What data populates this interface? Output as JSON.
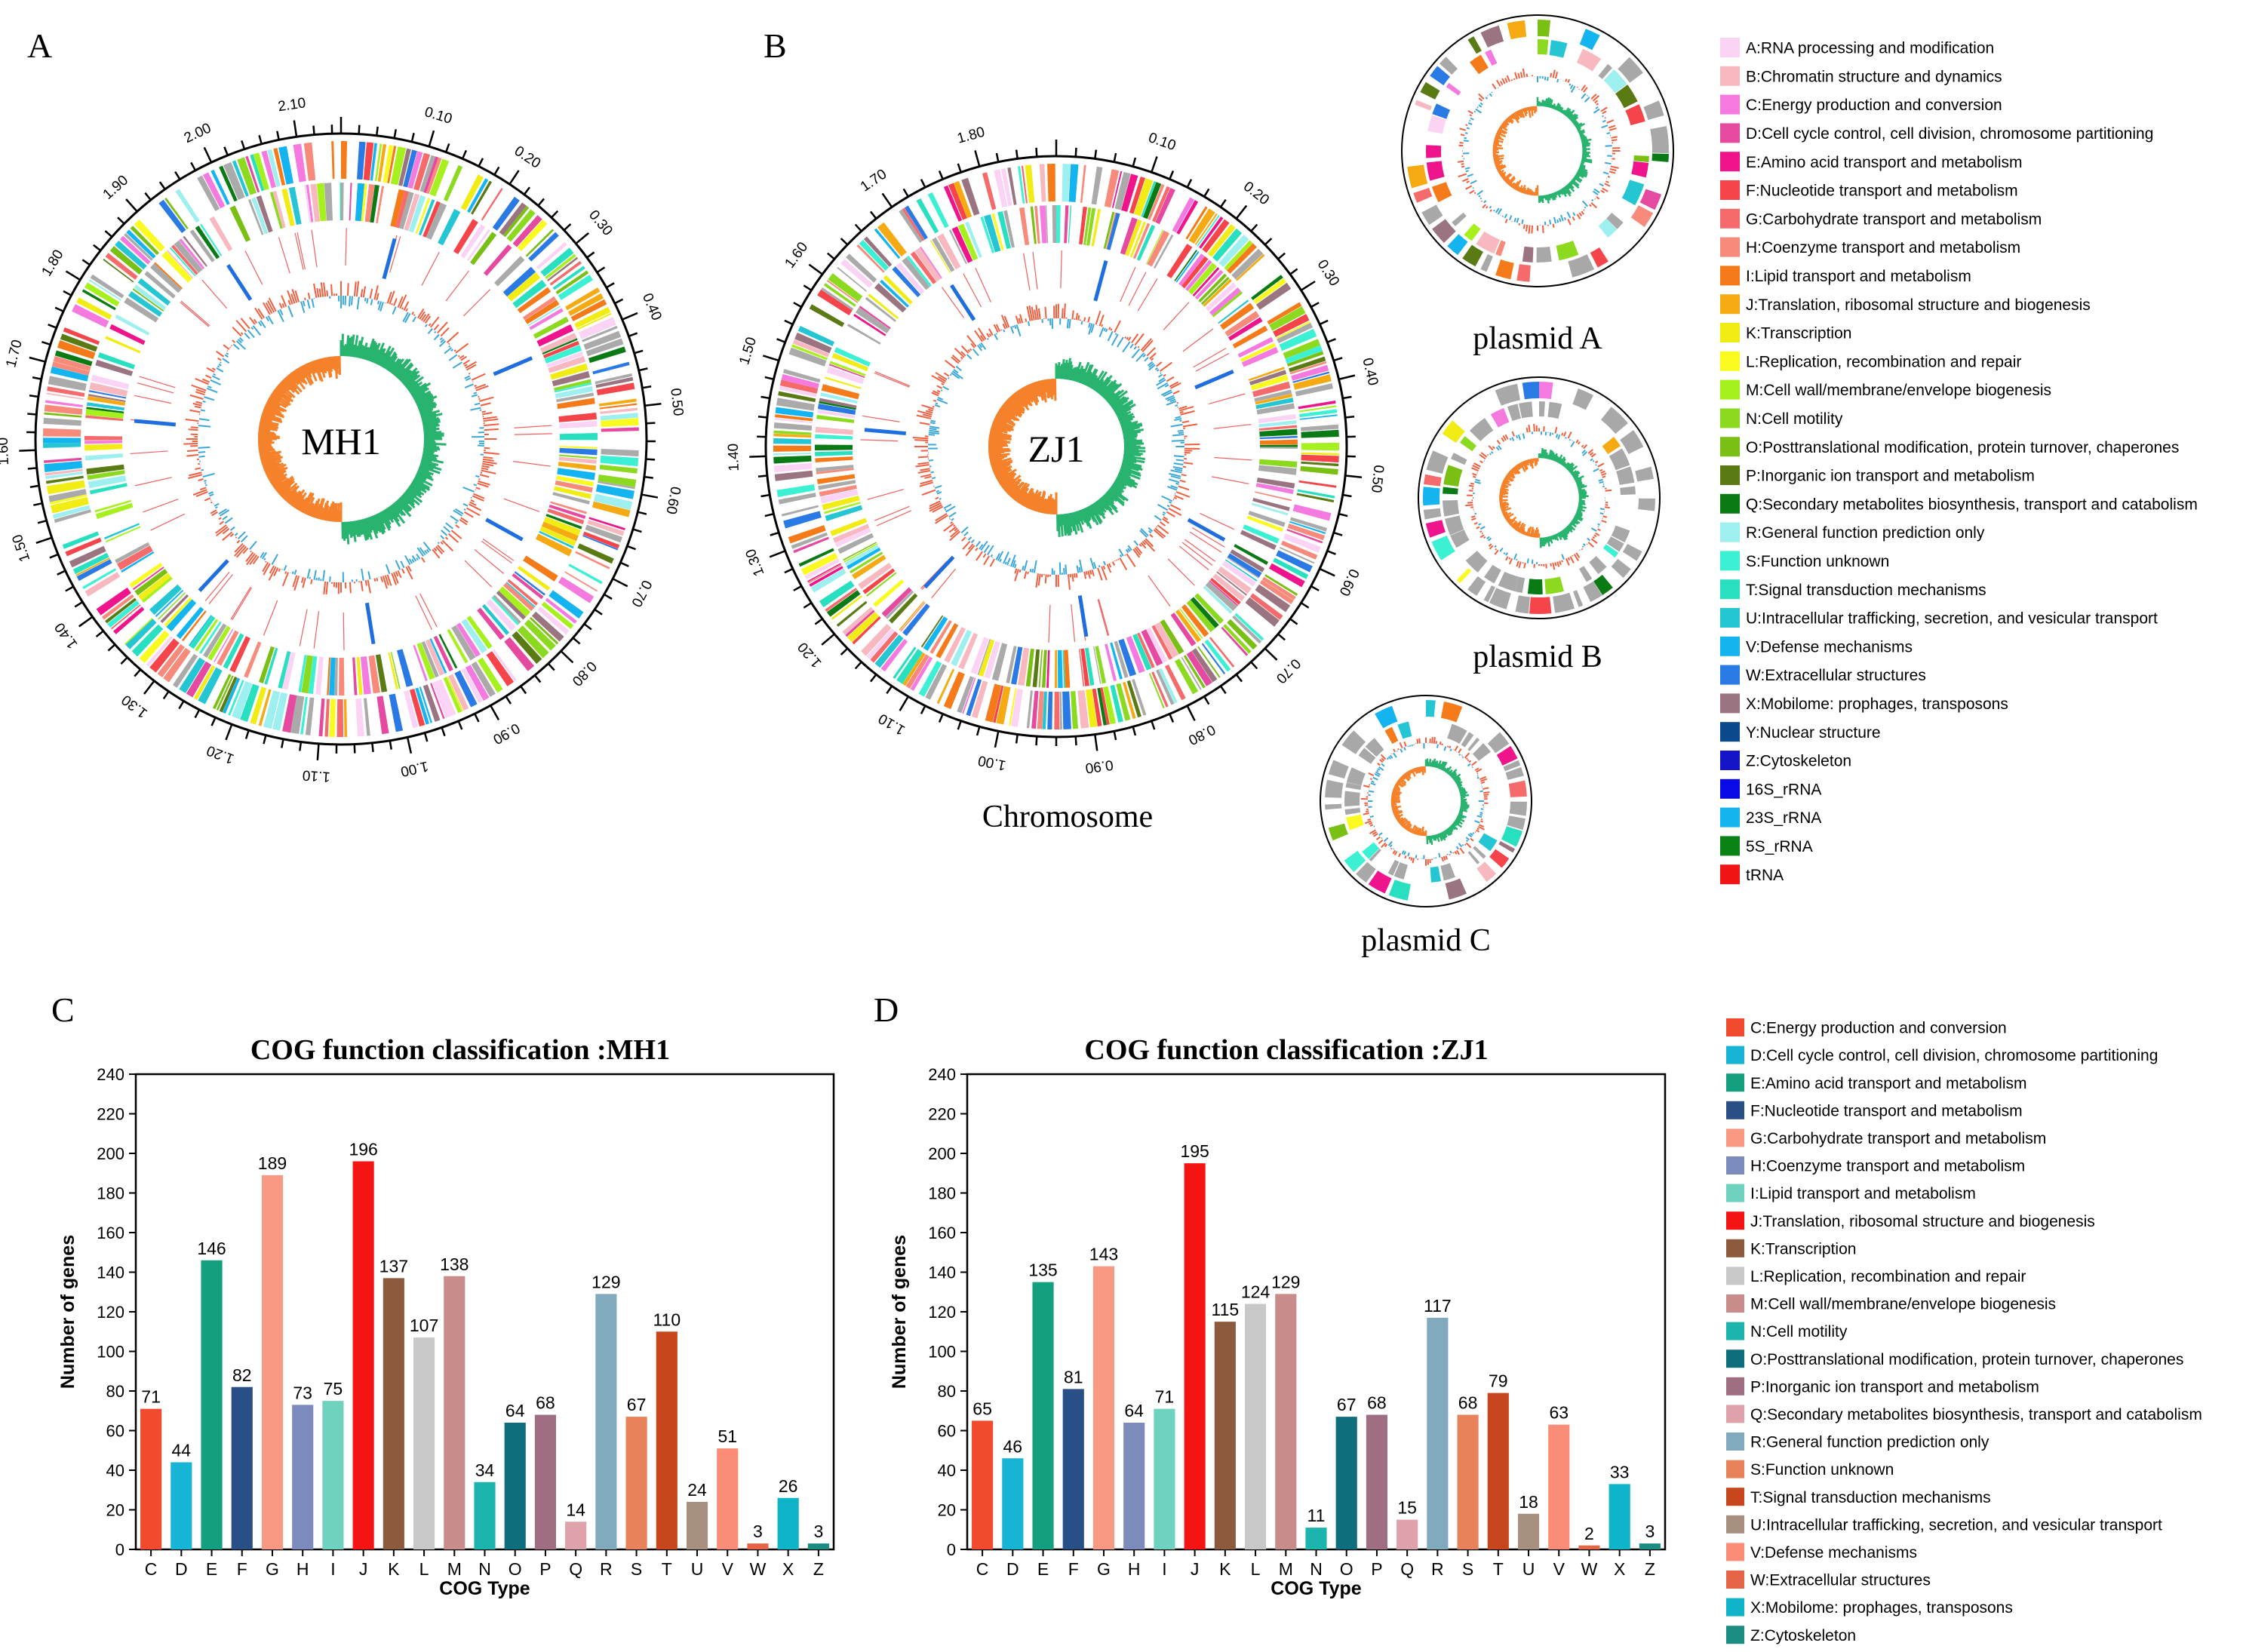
{
  "panel_labels": {
    "A": "A",
    "B": "B",
    "C": "C",
    "D": "D"
  },
  "genome_maps": {
    "mh1": {
      "center_label": "MH1",
      "ticks": [
        "0.10",
        "0.20",
        "0.30",
        "0.40",
        "0.50",
        "0.60",
        "0.70",
        "0.80",
        "0.90",
        "1.00",
        "1.10",
        "1.20",
        "1.30",
        "1.40",
        "1.50",
        "1.60",
        "1.70",
        "1.80",
        "1.90",
        "2.00",
        "2.10"
      ]
    },
    "zj1": {
      "center_label": "ZJ1",
      "caption": "Chromosome",
      "ticks": [
        "0.10",
        "0.20",
        "0.30",
        "0.40",
        "0.50",
        "0.60",
        "0.70",
        "0.80",
        "0.90",
        "1.00",
        "1.10",
        "1.20",
        "1.30",
        "1.40",
        "1.50",
        "1.60",
        "1.70",
        "1.80"
      ]
    },
    "plasmid_a": {
      "caption": "plasmid A"
    },
    "plasmid_b": {
      "caption": "plasmid B"
    },
    "plasmid_c": {
      "caption": "plasmid C"
    }
  },
  "circle_legend": [
    {
      "label": "A:RNA processing and modification",
      "color": "#fbd3f5"
    },
    {
      "label": "B:Chromatin structure and dynamics",
      "color": "#f8b8c0"
    },
    {
      "label": "C:Energy production and conversion",
      "color": "#f57ae0"
    },
    {
      "label": "D:Cell cycle control, cell division, chromosome partitioning",
      "color": "#e54aa0"
    },
    {
      "label": "E:Amino acid transport and metabolism",
      "color": "#f0148c"
    },
    {
      "label": "F:Nucleotide transport and metabolism",
      "color": "#f5444a"
    },
    {
      "label": "G:Carbohydrate transport and metabolism",
      "color": "#f56a6a"
    },
    {
      "label": "H:Coenzyme transport and metabolism",
      "color": "#f78a7a"
    },
    {
      "label": "I:Lipid transport and metabolism",
      "color": "#f57a1a"
    },
    {
      "label": "J:Translation, ribosomal structure and biogenesis",
      "color": "#f5aa14"
    },
    {
      "label": "K:Transcription",
      "color": "#f0ec14"
    },
    {
      "label": "L:Replication, recombination and repair",
      "color": "#fafa1e"
    },
    {
      "label": "M:Cell wall/membrane/envelope biogenesis",
      "color": "#a6f01e"
    },
    {
      "label": "N:Cell motility",
      "color": "#8cda20"
    },
    {
      "label": "O:Posttranslational modification, protein turnover, chaperones",
      "color": "#7ac014"
    },
    {
      "label": "P:Inorganic ion transport and metabolism",
      "color": "#5a7a14"
    },
    {
      "label": "Q:Secondary metabolites biosynthesis, transport and catabolism",
      "color": "#0a7a14"
    },
    {
      "label": "R:General function prediction only",
      "color": "#9ef0f0"
    },
    {
      "label": "S:Function unknown",
      "color": "#3cf0d4"
    },
    {
      "label": "T:Signal transduction mechanisms",
      "color": "#28e0c0"
    },
    {
      "label": "U:Intracellular trafficking, secretion, and vesicular transport",
      "color": "#24c6d4"
    },
    {
      "label": "V:Defense mechanisms",
      "color": "#14b4f0"
    },
    {
      "label": "W:Extracellular structures",
      "color": "#2a7ae6"
    },
    {
      "label": "X:Mobilome: prophages, transposons",
      "color": "#9a7480"
    },
    {
      "label": "Y:Nuclear structure",
      "color": "#0a4a8c"
    },
    {
      "label": "Z:Cytoskeleton",
      "color": "#1414c8"
    },
    {
      "label": "16S_rRNA",
      "color": "#0a0ae6"
    },
    {
      "label": "23S_rRNA",
      "color": "#14b4f0"
    },
    {
      "label": "5S_rRNA",
      "color": "#0a8214"
    },
    {
      "label": "tRNA",
      "color": "#f01414"
    }
  ],
  "chart_legend": [
    {
      "label": "C:Energy production and conversion",
      "color": "#f24a2e"
    },
    {
      "label": "D:Cell cycle control, cell division, chromosome partitioning",
      "color": "#17b4d6"
    },
    {
      "label": "E:Amino acid transport and metabolism",
      "color": "#14a07e"
    },
    {
      "label": "F:Nucleotide transport and metabolism",
      "color": "#284f86"
    },
    {
      "label": "G:Carbohydrate transport and metabolism",
      "color": "#f89a82"
    },
    {
      "label": "H:Coenzyme transport and metabolism",
      "color": "#7b8cbc"
    },
    {
      "label": "I:Lipid transport and metabolism",
      "color": "#6ed2be"
    },
    {
      "label": "J:Translation, ribosomal structure and biogenesis",
      "color": "#f51414"
    },
    {
      "label": "K:Transcription",
      "color": "#8c5a3c"
    },
    {
      "label": "L:Replication, recombination and repair",
      "color": "#c8c8c8"
    },
    {
      "label": "M:Cell wall/membrane/envelope biogenesis",
      "color": "#c88c8a"
    },
    {
      "label": "N:Cell motility",
      "color": "#1eb4ae"
    },
    {
      "label": "O:Posttranslational modification, protein turnover, chaperones",
      "color": "#0f6e7e"
    },
    {
      "label": "P:Inorganic ion transport and metabolism",
      "color": "#a06e82"
    },
    {
      "label": "Q:Secondary metabolites biosynthesis, transport and catabolism",
      "color": "#e0a2aa"
    },
    {
      "label": "R:General function prediction only",
      "color": "#82aabe"
    },
    {
      "label": "S:Function unknown",
      "color": "#e8825a"
    },
    {
      "label": "T:Signal transduction mechanisms",
      "color": "#c8461e"
    },
    {
      "label": "U:Intracellular trafficking, secretion, and vesicular transport",
      "color": "#a89080"
    },
    {
      "label": "V:Defense mechanisms",
      "color": "#fa8c78"
    },
    {
      "label": "W:Extracellular structures",
      "color": "#e66446"
    },
    {
      "label": "X:Mobilome: prophages, transposons",
      "color": "#10b4c8"
    },
    {
      "label": "Z:Cytoskeleton",
      "color": "#1a8c82"
    }
  ],
  "chart_data": [
    {
      "type": "bar",
      "title": "COG function classification :MH1",
      "xlabel": "COG Type",
      "ylabel": "Number of genes",
      "ylim": [
        0,
        240
      ],
      "yticks": [
        0,
        20,
        40,
        60,
        80,
        100,
        120,
        140,
        160,
        180,
        200,
        220,
        240
      ],
      "categories": [
        "C",
        "D",
        "E",
        "F",
        "G",
        "H",
        "I",
        "J",
        "K",
        "L",
        "M",
        "N",
        "O",
        "P",
        "Q",
        "R",
        "S",
        "T",
        "U",
        "V",
        "W",
        "X",
        "Z"
      ],
      "values": [
        71,
        44,
        146,
        82,
        189,
        73,
        75,
        196,
        137,
        107,
        138,
        34,
        64,
        68,
        14,
        129,
        67,
        110,
        24,
        51,
        3,
        26,
        3
      ],
      "grid": false
    },
    {
      "type": "bar",
      "title": "COG function classification :ZJ1",
      "xlabel": "COG Type",
      "ylabel": "Number of genes",
      "ylim": [
        0,
        240
      ],
      "yticks": [
        0,
        20,
        40,
        60,
        80,
        100,
        120,
        140,
        160,
        180,
        200,
        220,
        240
      ],
      "categories": [
        "C",
        "D",
        "E",
        "F",
        "G",
        "H",
        "I",
        "J",
        "K",
        "L",
        "M",
        "N",
        "O",
        "P",
        "Q",
        "R",
        "S",
        "T",
        "U",
        "V",
        "W",
        "X",
        "Z"
      ],
      "values": [
        65,
        46,
        135,
        81,
        143,
        64,
        71,
        195,
        115,
        124,
        129,
        11,
        67,
        68,
        15,
        117,
        68,
        79,
        18,
        63,
        2,
        33,
        3
      ],
      "grid": false
    }
  ]
}
